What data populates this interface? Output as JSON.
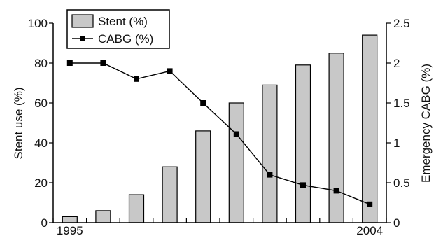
{
  "chart_data": {
    "type": "bar",
    "years": [
      "1995",
      "1996",
      "1997",
      "1998",
      "1999",
      "2000",
      "2001",
      "2002",
      "2003",
      "2004"
    ],
    "x_tick_labels": [
      {
        "index": 0,
        "label": "1995"
      },
      {
        "index": 9,
        "label": "2004"
      }
    ],
    "series": [
      {
        "name": "Stent (%)",
        "type": "bar",
        "axis": "left",
        "color": "#c8c8c8",
        "values": [
          3,
          6,
          14,
          28,
          46,
          60,
          69,
          79,
          85,
          94
        ]
      },
      {
        "name": "CABG (%)",
        "type": "line",
        "axis": "right",
        "color": "#000000",
        "marker": "square",
        "values": [
          2.0,
          2.0,
          1.8,
          1.9,
          1.5,
          1.11,
          0.6,
          0.47,
          0.4,
          0.23
        ]
      }
    ],
    "ylabel_left": "Stent use (%)",
    "ylabel_right": "Emergency CABG (%)",
    "ylim_left": [
      0,
      100
    ],
    "ylim_right": [
      0,
      2.5
    ],
    "yticks_left": [
      "0",
      "20",
      "40",
      "60",
      "80",
      "100"
    ],
    "yticks_right": [
      "0",
      "0.5",
      "1",
      "1.5",
      "2",
      "2.5"
    ],
    "legend_placement": "top-left",
    "grid": false
  }
}
